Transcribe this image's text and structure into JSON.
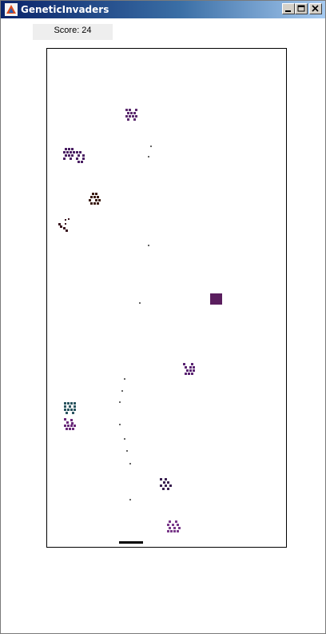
{
  "window": {
    "title": "GeneticInvaders",
    "controls": [
      "minimize",
      "maximize",
      "close"
    ],
    "icon": "java-cup-icon"
  },
  "hud": {
    "score_label": "Score: 24"
  },
  "colors": {
    "titlebar_start": "#0a246a",
    "titlebar_end": "#a6caf0",
    "player": "#000000",
    "bullet": "#333333"
  }
}
